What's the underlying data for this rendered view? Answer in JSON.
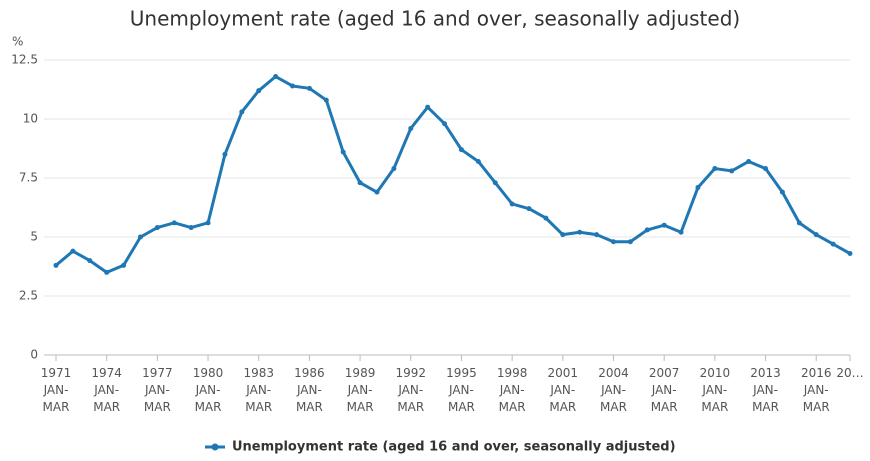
{
  "chart_data": {
    "type": "line",
    "title": "Unemployment rate (aged 16 and over, seasonally adjusted)",
    "y_unit": "%",
    "categories": [
      "1971 JAN-MAR",
      null,
      null,
      "1974 JAN-MAR",
      null,
      null,
      "1977 JAN-MAR",
      null,
      null,
      "1980 JAN-MAR",
      null,
      null,
      "1983 JAN-MAR",
      null,
      null,
      "1986 JAN-MAR",
      null,
      null,
      "1989 JAN-MAR",
      null,
      null,
      "1992 JAN-MAR",
      null,
      null,
      "1995 JAN-MAR",
      null,
      null,
      "1998 JAN-MAR",
      null,
      null,
      "2001 JAN-MAR",
      null,
      null,
      "2004 JAN-MAR",
      null,
      null,
      "2007 JAN-MAR",
      null,
      null,
      "2010 JAN-MAR",
      null,
      null,
      "2013 JAN-MAR",
      null,
      null,
      "2016 JAN-MAR",
      null,
      "20…"
    ],
    "series": [
      {
        "name": "Unemployment rate (aged 16 and over, seasonally adjusted)",
        "color": "#1f77b4",
        "values": [
          3.8,
          4.4,
          4.0,
          3.5,
          3.8,
          5.0,
          5.4,
          5.6,
          5.4,
          5.6,
          8.5,
          10.3,
          11.2,
          11.8,
          11.4,
          11.3,
          10.8,
          8.6,
          7.3,
          6.9,
          7.9,
          9.6,
          10.5,
          9.8,
          8.7,
          8.2,
          7.3,
          6.4,
          6.2,
          5.8,
          5.1,
          5.2,
          5.1,
          4.8,
          4.8,
          5.3,
          5.5,
          5.2,
          7.1,
          7.9,
          7.8,
          8.2,
          7.9,
          6.9,
          5.6,
          5.1,
          4.7,
          4.3
        ]
      }
    ],
    "ylim": [
      0,
      12.5
    ],
    "yticks": [
      0,
      2.5,
      5,
      7.5,
      10,
      12.5
    ],
    "grid": true,
    "legend": "bottom"
  }
}
